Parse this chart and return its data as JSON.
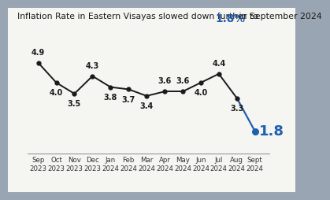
{
  "title_prefix": "Inflation Rate in Eastern Visayas slowed down further to ",
  "title_highlight": "1.8%",
  "title_suffix": " in September 2024",
  "months": [
    "Sep\n2023",
    "Oct\n2023",
    "Nov\n2023",
    "Dec\n2023",
    "Jan\n2024",
    "Feb\n2024",
    "Mar\n2024",
    "Apr\n2024",
    "May\n2024",
    "Jun\n2024",
    "Jul\n2024",
    "Aug\n2024",
    "Sept\n2024"
  ],
  "values": [
    4.9,
    4.0,
    3.5,
    4.3,
    3.8,
    3.7,
    3.4,
    3.6,
    3.6,
    4.0,
    4.4,
    3.3,
    1.8
  ],
  "line_color": "#1a1a1a",
  "highlight_color": "#2060b0",
  "last_value_color": "#2060b0",
  "title_color": "#1a1a1a",
  "title_highlight_color": "#2060b0",
  "bg_color": "#9aa5b4",
  "chart_bg": "#f5f5f2",
  "ylim": [
    0.8,
    6.0
  ],
  "label_fontsize": 7.0,
  "tick_fontsize": 6.2,
  "title_fontsize": 7.8,
  "label_offsets": [
    0.28,
    -0.3,
    -0.3,
    0.28,
    -0.3,
    -0.3,
    -0.3,
    0.28,
    0.28,
    -0.3,
    0.28,
    -0.3,
    0.0
  ]
}
